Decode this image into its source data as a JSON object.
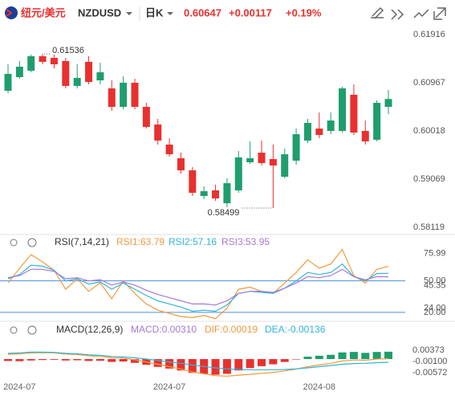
{
  "header": {
    "name": "纽元/美元",
    "symbol": "NZDUSD",
    "period": "日K",
    "price": "0.60647",
    "change": "+0.00117",
    "change_pct": "+0.19%"
  },
  "chart_data": [
    {
      "type": "candlestick",
      "categories": [
        null,
        "2024-07",
        null,
        null,
        null,
        null,
        null,
        null,
        null,
        null,
        null,
        null,
        null,
        null,
        "2024-07",
        null,
        null,
        null,
        null,
        null,
        null,
        null,
        null,
        null,
        null,
        null,
        null,
        "2024-08",
        null,
        null,
        null,
        null,
        null,
        null
      ],
      "open": [
        0.60809,
        0.61078,
        0.61204,
        0.61489,
        0.61457,
        0.61394,
        0.60904,
        0.61378,
        0.61014,
        0.60856,
        0.60492,
        0.60967,
        0.60492,
        0.60144,
        0.59749,
        0.5948,
        0.59242,
        0.58736,
        0.58847,
        0.58594,
        0.58847,
        0.59401,
        0.5959,
        0.59464,
        0.59116,
        0.59432,
        0.59828,
        0.60065,
        0.60018,
        0.60018,
        0.6073,
        0.60018,
        0.59844,
        0.60492
      ],
      "high": [
        0.61331,
        0.61394,
        0.61521,
        0.61536,
        0.61521,
        0.61457,
        0.61331,
        0.61489,
        0.61362,
        0.61014,
        0.61093,
        0.61046,
        0.60571,
        0.60255,
        0.59875,
        0.5959,
        0.59306,
        0.58926,
        0.58958,
        0.59084,
        0.59622,
        0.59812,
        0.59828,
        0.59749,
        0.5967,
        0.60065,
        0.60255,
        0.60381,
        0.60381,
        0.60888,
        0.60935,
        0.60223,
        0.60619,
        0.60824
      ],
      "low": [
        0.60761,
        0.61046,
        0.61173,
        0.61331,
        0.61252,
        0.60856,
        0.60856,
        0.60935,
        0.60935,
        0.60413,
        0.60445,
        0.60445,
        0.60065,
        0.59749,
        0.59511,
        0.59179,
        0.58736,
        0.58673,
        0.58641,
        0.58515,
        0.588,
        0.59369,
        0.59337,
        0.58499,
        0.59084,
        0.59353,
        0.5978,
        0.59875,
        0.59954,
        0.59986,
        0.59938,
        0.59749,
        0.59812,
        0.6035
      ],
      "close": [
        0.61141,
        0.61283,
        0.61489,
        0.61378,
        0.61331,
        0.60904,
        0.61062,
        0.60983,
        0.61173,
        0.60492,
        0.60967,
        0.60492,
        0.60097,
        0.59828,
        0.59559,
        0.59242,
        0.588,
        0.58831,
        0.58689,
        0.58989,
        0.59496,
        0.5948,
        0.59385,
        0.59337,
        0.59559,
        0.59954,
        0.60176,
        0.59938,
        0.60223,
        0.60856,
        0.59986,
        0.59812,
        0.60571,
        0.60647
      ],
      "up_color": "#1f9e6d",
      "down_color": "#e8312f",
      "ylim": [
        0.58009,
        0.62122
      ],
      "yticks": [
        0.61916,
        0.60967,
        0.60018,
        0.59069,
        0.58119
      ]
    },
    {
      "type": "line",
      "title": "RSI(7,14,21)",
      "series": [
        {
          "name": "RSI1:63.79",
          "color": "#f39a3c",
          "values": [
            48,
            62,
            75,
            68,
            60,
            42,
            52,
            40,
            48,
            33,
            50,
            38,
            28,
            22,
            19,
            16,
            15,
            17,
            14,
            24,
            42,
            44,
            40,
            38,
            48,
            58,
            70,
            62,
            66,
            80,
            55,
            48,
            61,
            63.79
          ]
        },
        {
          "name": "RSI2:57.16",
          "color": "#32b4d8",
          "values": [
            52,
            56,
            65,
            64,
            60,
            50,
            52,
            47,
            49,
            42,
            48,
            42,
            36,
            31,
            28,
            25,
            21,
            22,
            21,
            27,
            38,
            40,
            39,
            38,
            43,
            50,
            58,
            56,
            58,
            66,
            54,
            50,
            57,
            57.16
          ]
        },
        {
          "name": "RSI3:53.95",
          "color": "#a57ad6",
          "values": [
            53,
            55,
            61,
            61,
            59,
            52,
            53,
            50,
            51,
            46,
            49,
            46,
            41,
            37,
            34,
            31,
            28,
            28,
            27,
            31,
            38,
            40,
            40,
            39,
            43,
            48,
            54,
            53,
            55,
            61,
            54,
            51,
            54,
            53.95
          ]
        }
      ],
      "reference_lines": [
        50,
        20
      ],
      "reference_color": "#4a8fd9",
      "ylim": [
        13,
        88
      ],
      "yticks": [
        75.99,
        {
          "value": 50,
          "label": "50.00"
        },
        45.35,
        {
          "value": 24,
          "label": "24.00"
        },
        {
          "value": 20,
          "label": "20.00"
        }
      ]
    },
    {
      "type": "combo",
      "title": "MACD(12,26,9)",
      "series": [
        {
          "name": "MACD:0.00310",
          "type": "bar",
          "color": "#a57ad6",
          "up_color": "#1f9e6d",
          "down_color": "#e8312f",
          "values": [
            -0.0008,
            -0.0009,
            -0.0006,
            -0.0004,
            -0.0003,
            -0.0006,
            -0.0005,
            -0.0008,
            -0.0007,
            -0.0012,
            -0.001,
            -0.0016,
            -0.0024,
            -0.0033,
            -0.004,
            -0.0048,
            -0.0058,
            -0.0062,
            -0.0066,
            -0.0062,
            -0.0048,
            -0.0038,
            -0.003,
            -0.0022,
            -0.0012,
            -0.0002,
            0.001,
            0.0014,
            0.0018,
            0.0028,
            0.003,
            0.0026,
            0.003,
            0.0031
          ]
        },
        {
          "name": "DIF:0.00019",
          "type": "line",
          "color": "#f39a3c",
          "values": [
            0.002,
            0.0022,
            0.0026,
            0.0027,
            0.0026,
            0.0021,
            0.0019,
            0.0014,
            0.0012,
            0.0005,
            0.0004,
            -0.0003,
            -0.0012,
            -0.0022,
            -0.0032,
            -0.0042,
            -0.0054,
            -0.0062,
            -0.007,
            -0.0072,
            -0.0068,
            -0.0064,
            -0.006,
            -0.0056,
            -0.005,
            -0.0042,
            -0.0032,
            -0.0025,
            -0.0018,
            -0.0008,
            -0.0004,
            -0.0005,
            0.0,
            0.00019
          ]
        },
        {
          "name": "DEA:-0.00136",
          "type": "line",
          "color": "#32b4d8",
          "values": [
            0.0024,
            0.0026,
            0.0029,
            0.0029,
            0.0028,
            0.0024,
            0.0022,
            0.0018,
            0.0016,
            0.0011,
            0.0009,
            0.0005,
            0.0,
            -0.0006,
            -0.0012,
            -0.0018,
            -0.0025,
            -0.0031,
            -0.0037,
            -0.0041,
            -0.0044,
            -0.0045,
            -0.0045,
            -0.0045,
            -0.0044,
            -0.0041,
            -0.0037,
            -0.0032,
            -0.0027,
            -0.0022,
            -0.0019,
            -0.0018,
            -0.0015,
            -0.00136
          ]
        }
      ],
      "ylim": [
        -0.01047,
        0.00981
      ],
      "yticks": [
        0.00373,
        {
          "value": -0.001,
          "label": "-0.00100"
        },
        -0.00572
      ]
    }
  ]
}
